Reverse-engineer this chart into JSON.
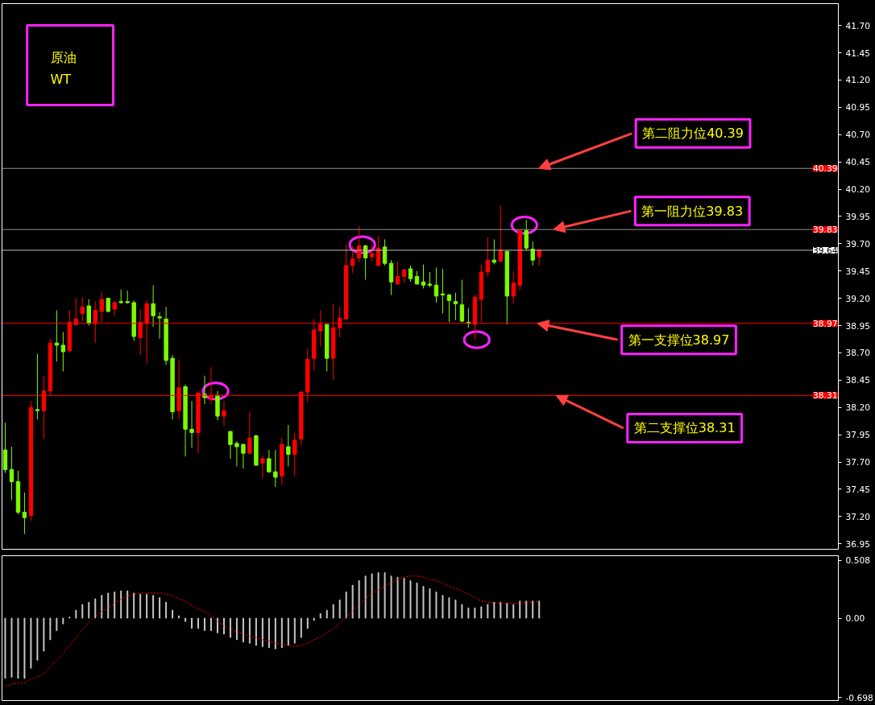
{
  "chart_data": [
    {
      "type": "candlestick",
      "categories": [
        null,
        null,
        null,
        null,
        null,
        null,
        null,
        null,
        null,
        null,
        null,
        null,
        null,
        null,
        null,
        null,
        null,
        null,
        null,
        null,
        null,
        null,
        null,
        null,
        null,
        null,
        null,
        null,
        null,
        null,
        null,
        null,
        null,
        null,
        null,
        null,
        null,
        null,
        null,
        null,
        null,
        null,
        null,
        null,
        null,
        null,
        null,
        null,
        null,
        null,
        null,
        null,
        null,
        null,
        null,
        null,
        null,
        null,
        null,
        null,
        null,
        null,
        null,
        null,
        null,
        null,
        null,
        null,
        null,
        null,
        null,
        null,
        null,
        null,
        null,
        null,
        null,
        null,
        null,
        null,
        null,
        null,
        null,
        null,
        null,
        null,
        null,
        null,
        null,
        null,
        null,
        null,
        null,
        null,
        null,
        null,
        null,
        null,
        null,
        null,
        null,
        null,
        null,
        null,
        null,
        null,
        null,
        null,
        null,
        null,
        null,
        null,
        null,
        null,
        null,
        null,
        null,
        null,
        null,
        null,
        null,
        null,
        null,
        null,
        null,
        null,
        null,
        null,
        null,
        null
      ],
      "ohlc": [
        [
          37.81,
          38.06,
          37.6,
          37.63
        ],
        [
          37.63,
          37.84,
          37.35,
          37.52
        ],
        [
          37.52,
          37.62,
          37.22,
          37.24
        ],
        [
          37.24,
          37.42,
          37.04,
          37.19
        ],
        [
          37.21,
          38.26,
          37.16,
          38.2
        ],
        [
          38.18,
          38.69,
          38.09,
          38.17
        ],
        [
          38.17,
          38.49,
          37.91,
          38.35
        ],
        [
          38.35,
          38.83,
          38.31,
          38.79
        ],
        [
          38.79,
          39.09,
          38.62,
          38.77
        ],
        [
          38.77,
          38.89,
          38.53,
          38.71
        ],
        [
          38.72,
          39.09,
          38.7,
          38.98
        ],
        [
          38.96,
          39.2,
          38.95,
          39.01
        ],
        [
          39.06,
          39.21,
          38.99,
          39.12
        ],
        [
          39.13,
          39.19,
          38.95,
          38.97
        ],
        [
          38.97,
          39.17,
          38.79,
          39.09
        ],
        [
          39.08,
          39.26,
          38.98,
          39.19
        ],
        [
          39.2,
          39.2,
          39.07,
          39.08
        ],
        [
          39.1,
          39.18,
          39.04,
          39.16
        ],
        [
          39.17,
          39.28,
          39.15,
          39.16
        ],
        [
          39.17,
          39.27,
          39.15,
          39.16
        ],
        [
          39.16,
          39.18,
          38.81,
          38.85
        ],
        [
          38.84,
          39.1,
          38.68,
          38.98
        ],
        [
          38.97,
          39.18,
          38.6,
          39.15
        ],
        [
          39.15,
          39.32,
          38.94,
          39.04
        ],
        [
          39.03,
          39.07,
          38.83,
          39.02
        ],
        [
          39.01,
          39.12,
          38.59,
          38.63
        ],
        [
          38.65,
          38.68,
          38.09,
          38.16
        ],
        [
          38.17,
          38.64,
          38.09,
          38.38
        ],
        [
          38.39,
          38.41,
          37.75,
          38.0
        ],
        [
          38.0,
          38.26,
          37.83,
          37.97
        ],
        [
          37.97,
          38.35,
          37.78,
          38.33
        ],
        [
          38.32,
          38.49,
          38.23,
          38.29
        ],
        [
          38.28,
          38.57,
          38.23,
          38.31
        ],
        [
          38.31,
          38.35,
          38.08,
          38.12
        ],
        [
          38.12,
          38.26,
          38.03,
          38.17
        ],
        [
          37.98,
          37.98,
          37.73,
          37.86
        ],
        [
          37.87,
          37.89,
          37.66,
          37.84
        ],
        [
          37.86,
          37.87,
          37.64,
          37.78
        ],
        [
          37.78,
          38.16,
          37.78,
          37.92
        ],
        [
          37.94,
          37.95,
          37.67,
          37.67
        ],
        [
          37.69,
          37.76,
          37.55,
          37.73
        ],
        [
          37.73,
          37.81,
          37.6,
          37.61
        ],
        [
          37.61,
          37.81,
          37.47,
          37.56
        ],
        [
          37.57,
          37.92,
          37.49,
          37.86
        ],
        [
          37.84,
          38.04,
          37.66,
          37.77
        ],
        [
          37.77,
          37.97,
          37.57,
          37.9
        ],
        [
          37.91,
          38.35,
          37.85,
          38.34
        ],
        [
          38.34,
          38.74,
          38.25,
          38.64
        ],
        [
          38.65,
          39.01,
          38.54,
          38.91
        ],
        [
          38.9,
          39.09,
          38.76,
          38.96
        ],
        [
          38.96,
          38.96,
          38.53,
          38.65
        ],
        [
          38.65,
          39.15,
          38.45,
          38.93
        ],
        [
          38.93,
          39.12,
          38.84,
          39.02
        ],
        [
          39.01,
          39.69,
          39.01,
          39.5
        ],
        [
          39.5,
          39.68,
          39.43,
          39.56
        ],
        [
          39.57,
          39.86,
          39.53,
          39.68
        ],
        [
          39.68,
          39.69,
          39.37,
          39.57
        ],
        [
          39.58,
          39.69,
          39.54,
          39.61
        ],
        [
          39.5,
          39.77,
          39.5,
          39.66
        ],
        [
          39.67,
          39.74,
          39.5,
          39.52
        ],
        [
          39.52,
          39.55,
          39.23,
          39.35
        ],
        [
          39.33,
          39.54,
          39.33,
          39.4
        ],
        [
          39.4,
          39.47,
          39.34,
          39.46
        ],
        [
          39.47,
          39.5,
          39.35,
          39.38
        ],
        [
          39.4,
          39.45,
          39.33,
          39.33
        ],
        [
          39.35,
          39.51,
          39.29,
          39.32
        ],
        [
          39.33,
          39.44,
          39.3,
          39.32
        ],
        [
          39.32,
          39.48,
          39.16,
          39.22
        ],
        [
          39.24,
          39.47,
          39.06,
          39.23
        ],
        [
          39.23,
          39.24,
          38.98,
          39.18
        ],
        [
          39.17,
          39.25,
          39.0,
          39.15
        ],
        [
          39.14,
          39.37,
          38.98,
          38.99
        ],
        [
          38.98,
          39.11,
          38.93,
          38.97
        ],
        [
          38.96,
          39.23,
          38.82,
          39.21
        ],
        [
          39.19,
          39.51,
          38.98,
          39.44
        ],
        [
          39.44,
          39.76,
          39.4,
          39.55
        ],
        [
          39.55,
          39.74,
          39.51,
          39.53
        ],
        [
          39.54,
          40.05,
          39.53,
          39.64
        ],
        [
          39.63,
          39.63,
          38.96,
          39.22
        ],
        [
          39.22,
          39.45,
          39.15,
          39.34
        ],
        [
          39.32,
          39.82,
          39.27,
          39.82
        ],
        [
          39.82,
          39.92,
          39.64,
          39.66
        ],
        [
          39.65,
          39.72,
          39.5,
          39.55
        ],
        [
          39.58,
          39.65,
          39.5,
          39.64
        ],
        null,
        null,
        null,
        null,
        null,
        null,
        null,
        null,
        null,
        null,
        null,
        null,
        null,
        null,
        null,
        null,
        null,
        null,
        null,
        null,
        null,
        null,
        null,
        null,
        null,
        null,
        null,
        null,
        null,
        null,
        null,
        null,
        null,
        null,
        null,
        null,
        null,
        null,
        null,
        null,
        null,
        null,
        null,
        null,
        null,
        null
      ],
      "colors": [
        "#7cfc00",
        "#7cfc00",
        "#7cfc00",
        "#7cfc00",
        "#ff0000",
        "#7cfc00",
        "#ff0000",
        "#ff0000",
        "#7cfc00",
        "#7cfc00",
        "#ff0000",
        "#ff0000",
        "#ff0000",
        "#7cfc00",
        "#ff0000",
        "#ff0000",
        "#7cfc00",
        "#ff0000",
        "#7cfc00",
        "#7cfc00",
        "#7cfc00",
        "#ff0000",
        "#ff0000",
        "#7cfc00",
        "#7cfc00",
        "#7cfc00",
        "#7cfc00",
        "#ff0000",
        "#7cfc00",
        "#7cfc00",
        "#ff0000",
        "#7cfc00",
        "#ff0000",
        "#7cfc00",
        "#ff0000",
        "#7cfc00",
        "#7cfc00",
        "#7cfc00",
        "#ff0000",
        "#7cfc00",
        "#ff0000",
        "#7cfc00",
        "#7cfc00",
        "#ff0000",
        "#7cfc00",
        "#ff0000",
        "#ff0000",
        "#ff0000",
        "#ff0000",
        "#ff0000",
        "#7cfc00",
        "#ff0000",
        "#ff0000",
        "#ff0000",
        "#ff0000",
        "#ff0000",
        "#7cfc00",
        "#ff0000",
        "#ff0000",
        "#7cfc00",
        "#7cfc00",
        "#ff0000",
        "#ff0000",
        "#7cfc00",
        "#7cfc00",
        "#7cfc00",
        "#7cfc00",
        "#7cfc00",
        "#7cfc00",
        "#7cfc00",
        "#7cfc00",
        "#7cfc00",
        "#7cfc00",
        "#ff0000",
        "#ff0000",
        "#ff0000",
        "#7cfc00",
        "#ff0000",
        "#7cfc00",
        "#ff0000",
        "#ff0000",
        "#7cfc00",
        "#7cfc00",
        "#ff0000",
        null,
        null,
        null,
        null,
        null,
        null,
        null,
        null,
        null,
        null,
        null,
        null,
        null,
        null,
        null,
        null,
        null,
        null,
        null,
        null,
        null,
        null,
        null,
        null,
        null,
        null,
        null,
        null,
        null,
        null,
        null,
        null,
        null,
        null,
        null,
        null,
        null,
        null,
        null,
        null,
        null,
        null,
        null,
        null,
        null,
        null
      ],
      "ylim": [
        36.9,
        41.9
      ],
      "yticks": [
        {
          "value": 36.95,
          "label": "36.95"
        },
        {
          "value": 37.2,
          "label": "37.20"
        },
        {
          "value": 37.45,
          "label": "37.45"
        },
        {
          "value": 37.7,
          "label": "37.70"
        },
        {
          "value": 37.95,
          "label": "37.95"
        },
        {
          "value": 38.2,
          "label": "38.20"
        },
        {
          "value": 38.45,
          "label": "38.45"
        },
        {
          "value": 38.7,
          "label": "38.70"
        },
        {
          "value": 38.95,
          "label": "38.95"
        },
        {
          "value": 39.2,
          "label": "39.20"
        },
        {
          "value": 39.45,
          "label": "39.45"
        },
        {
          "value": 39.7,
          "label": "39.70"
        },
        {
          "value": 39.95,
          "label": "39.95"
        },
        {
          "value": 40.2,
          "label": "40.20"
        },
        {
          "value": 40.45,
          "label": "40.45"
        },
        {
          "value": 40.7,
          "label": "40.70"
        },
        {
          "value": 40.95,
          "label": "40.95"
        },
        {
          "value": 41.2,
          "label": "41.20"
        },
        {
          "value": 41.45,
          "label": "41.45"
        },
        {
          "value": 41.7,
          "label": "41.70"
        }
      ],
      "ref_lines": [
        {
          "axis": "y",
          "value": 40.39,
          "label": "40.39",
          "color": "#909090"
        },
        {
          "axis": "y",
          "value": 39.83,
          "label": "39.83",
          "color": "#909090"
        },
        {
          "axis": "y",
          "value": 39.64,
          "label": "39.64",
          "color": "#c0c0c0"
        },
        {
          "axis": "y",
          "value": 38.97,
          "label": "38.97",
          "color": "#ff0000"
        },
        {
          "axis": "y",
          "value": 38.31,
          "label": "38.31",
          "color": "#ff0000"
        }
      ],
      "annotations": [
        "原油",
        "WT",
        {
          "text": "第二阻力位40.39",
          "y": 40.39
        },
        {
          "text": "第一阻力位39.83",
          "y": 39.83
        },
        {
          "text": "第一支撑位38.97",
          "y": 38.97
        },
        {
          "text": "第二支撑位38.31",
          "y": 38.31
        }
      ],
      "grid": false,
      "tick_labels": "y"
    },
    {
      "type": "bar",
      "categories": [
        null,
        null,
        null,
        null,
        null,
        null,
        null,
        null,
        null,
        null,
        null,
        null,
        null,
        null,
        null,
        null,
        null,
        null,
        null,
        null,
        null,
        null,
        null,
        null,
        null,
        null,
        null,
        null,
        null,
        null,
        null,
        null,
        null,
        null,
        null,
        null,
        null,
        null,
        null,
        null,
        null,
        null,
        null,
        null,
        null,
        null,
        null,
        null,
        null,
        null,
        null,
        null,
        null,
        null,
        null,
        null,
        null,
        null,
        null,
        null,
        null,
        null,
        null,
        null,
        null,
        null,
        null,
        null,
        null,
        null,
        null,
        null,
        null,
        null,
        null,
        null,
        null,
        null,
        null,
        null,
        null,
        null,
        null,
        null,
        null,
        null,
        null,
        null,
        null,
        null,
        null,
        null,
        null,
        null,
        null,
        null,
        null,
        null,
        null,
        null,
        null,
        null,
        null,
        null,
        null,
        null,
        null,
        null,
        null,
        null,
        null,
        null,
        null,
        null,
        null,
        null,
        null,
        null,
        null,
        null,
        null,
        null,
        null,
        null,
        null,
        null,
        null,
        null,
        null,
        null
      ],
      "series": [
        {
          "type": "bar",
          "color": "#c8c8c8",
          "values": [
            -0.53,
            -0.52,
            -0.53,
            -0.53,
            -0.44,
            -0.37,
            -0.29,
            -0.19,
            -0.11,
            -0.05,
            0.01,
            0.07,
            0.12,
            0.14,
            0.17,
            0.2,
            0.22,
            0.23,
            0.24,
            0.24,
            0.22,
            0.21,
            0.21,
            0.2,
            0.18,
            0.14,
            0.07,
            0.02,
            -0.03,
            -0.09,
            -0.09,
            -0.11,
            -0.11,
            -0.13,
            -0.14,
            -0.17,
            -0.19,
            -0.21,
            -0.22,
            -0.24,
            -0.25,
            -0.26,
            -0.27,
            -0.26,
            -0.24,
            -0.22,
            -0.17,
            -0.09,
            -0.02,
            0.04,
            0.07,
            0.12,
            0.16,
            0.23,
            0.29,
            0.33,
            0.37,
            0.39,
            0.4,
            0.4,
            0.37,
            0.36,
            0.35,
            0.33,
            0.31,
            0.28,
            0.26,
            0.23,
            0.2,
            0.18,
            0.16,
            0.12,
            0.09,
            0.09,
            0.1,
            0.12,
            0.14,
            0.14,
            0.13,
            0.12,
            0.15,
            0.15,
            0.15,
            0.15,
            null,
            null,
            null,
            null,
            null,
            null,
            null,
            null,
            null,
            null,
            null,
            null,
            null,
            null,
            null,
            null,
            null,
            null,
            null,
            null,
            null,
            null,
            null,
            null,
            null,
            null,
            null,
            null,
            null,
            null,
            null,
            null,
            null,
            null,
            null,
            null,
            null,
            null,
            null,
            null,
            null,
            null,
            null,
            null,
            null,
            null
          ]
        },
        {
          "type": "line",
          "color": "#ff0000",
          "line_style": "dotted",
          "values": [
            -0.6,
            -0.58,
            -0.57,
            -0.57,
            -0.54,
            -0.52,
            -0.49,
            -0.43,
            -0.37,
            -0.31,
            -0.24,
            -0.17,
            -0.1,
            -0.04,
            0.01,
            0.06,
            0.09,
            0.13,
            0.17,
            0.19,
            0.21,
            0.22,
            0.22,
            0.22,
            0.22,
            0.21,
            0.2,
            0.17,
            0.15,
            0.11,
            0.08,
            0.06,
            0.02,
            -0.03,
            -0.07,
            -0.09,
            -0.12,
            -0.14,
            -0.16,
            -0.17,
            -0.19,
            -0.2,
            -0.22,
            -0.23,
            -0.24,
            -0.25,
            -0.24,
            -0.22,
            -0.19,
            -0.17,
            -0.13,
            -0.09,
            -0.05,
            0.01,
            0.06,
            0.12,
            0.17,
            0.21,
            0.25,
            0.28,
            0.31,
            0.34,
            0.36,
            0.37,
            0.37,
            0.36,
            0.34,
            0.33,
            0.31,
            0.28,
            0.26,
            0.24,
            0.21,
            0.18,
            0.15,
            0.14,
            0.14,
            0.13,
            0.13,
            0.13,
            0.13,
            0.14,
            0.14,
            0.15,
            null,
            null,
            null,
            null,
            null,
            null,
            null,
            null,
            null,
            null,
            null,
            null,
            null,
            null,
            null,
            null,
            null,
            null,
            null,
            null,
            null,
            null,
            null,
            null,
            null,
            null,
            null,
            null,
            null,
            null,
            null,
            null,
            null,
            null,
            null,
            null,
            null,
            null,
            null,
            null,
            null,
            null,
            null,
            null,
            null,
            null
          ]
        }
      ],
      "ylim": [
        -0.725,
        0.549
      ],
      "yticks": [
        {
          "value": 0.508,
          "label": "0.508"
        },
        {
          "value": 0,
          "label": "0.00"
        },
        {
          "value": -0.698,
          "label": "-0.698"
        }
      ],
      "grid": false,
      "tick_labels": "y"
    }
  ]
}
